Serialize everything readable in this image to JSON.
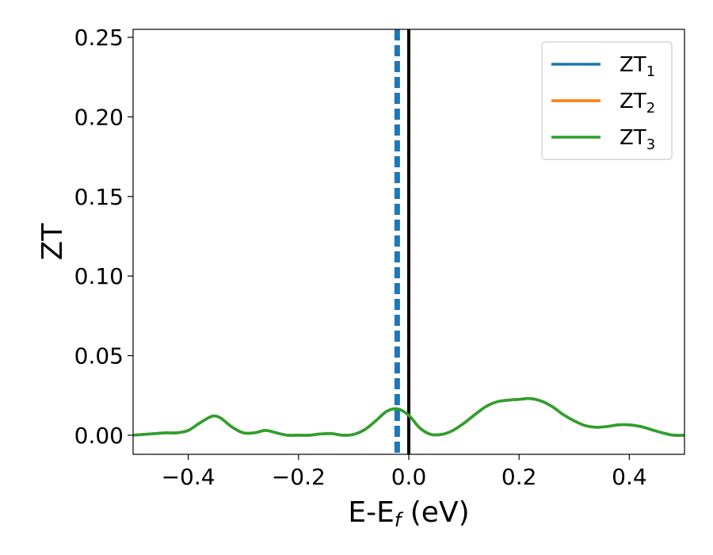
{
  "chart_data": {
    "type": "line",
    "xlabel_main": "E-E",
    "xlabel_sub": "f",
    "xlabel_unit": " (eV)",
    "ylabel": "ZT",
    "xlim": [
      -0.5,
      0.5
    ],
    "ylim": [
      -0.012,
      0.255
    ],
    "grid": false,
    "legend_placement": "top-right",
    "x_ticks": [
      -0.4,
      -0.2,
      0.0,
      0.2,
      0.4
    ],
    "x_tick_labels": [
      "−0.4",
      "−0.2",
      "0.0",
      "0.2",
      "0.4"
    ],
    "y_ticks": [
      0.0,
      0.05,
      0.1,
      0.15,
      0.2,
      0.25
    ],
    "y_tick_labels": [
      "0.00",
      "0.05",
      "0.10",
      "0.15",
      "0.20",
      "0.25"
    ],
    "reference_lines": [
      {
        "x": -0.021,
        "style": "dashed",
        "color": "#1f77b4"
      },
      {
        "x": 0.0,
        "style": "solid",
        "color": "#000000"
      }
    ],
    "series": [
      {
        "name_main": "ZT",
        "name_sub": "1",
        "color": "#1f77b4"
      },
      {
        "name_main": "ZT",
        "name_sub": "2",
        "color": "#ff7f0e"
      },
      {
        "name_main": "ZT",
        "name_sub": "3",
        "color": "#2ca02c"
      }
    ],
    "x": [
      -0.5,
      -0.48,
      -0.46,
      -0.44,
      -0.42,
      -0.4,
      -0.38,
      -0.36,
      -0.35,
      -0.34,
      -0.32,
      -0.3,
      -0.28,
      -0.26,
      -0.24,
      -0.22,
      -0.2,
      -0.18,
      -0.16,
      -0.14,
      -0.12,
      -0.1,
      -0.08,
      -0.06,
      -0.04,
      -0.02,
      0.0,
      0.02,
      0.04,
      0.06,
      0.08,
      0.1,
      0.12,
      0.14,
      0.16,
      0.18,
      0.2,
      0.22,
      0.24,
      0.26,
      0.28,
      0.3,
      0.32,
      0.34,
      0.36,
      0.38,
      0.4,
      0.42,
      0.44,
      0.46,
      0.48,
      0.5
    ],
    "y": [
      0.0,
      0.0005,
      0.001,
      0.0015,
      0.0015,
      0.003,
      0.0075,
      0.0115,
      0.012,
      0.0105,
      0.005,
      0.0015,
      0.0015,
      0.003,
      0.0015,
      0.0,
      0.0,
      0.0,
      0.0008,
      0.001,
      0.0,
      0.0005,
      0.0035,
      0.009,
      0.015,
      0.0165,
      0.0125,
      0.0045,
      0.0005,
      0.0005,
      0.003,
      0.0075,
      0.013,
      0.018,
      0.021,
      0.022,
      0.0225,
      0.023,
      0.0215,
      0.018,
      0.013,
      0.009,
      0.006,
      0.005,
      0.0055,
      0.0065,
      0.0065,
      0.0055,
      0.0035,
      0.0015,
      0.0,
      0.0
    ]
  }
}
